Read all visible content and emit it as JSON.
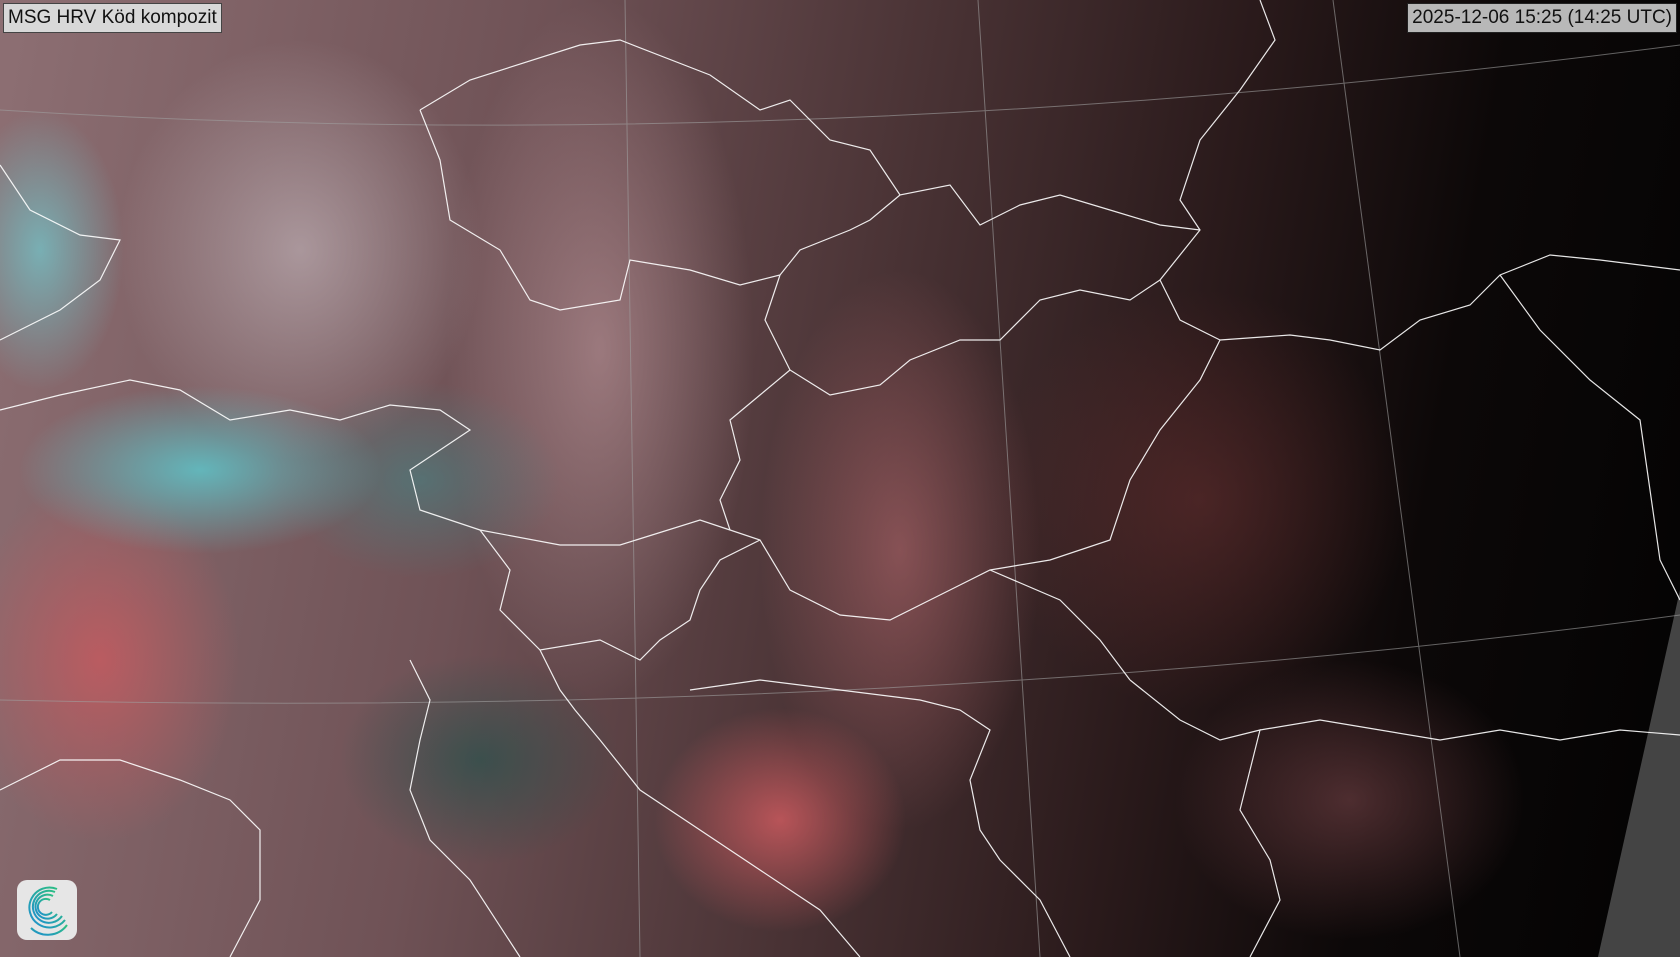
{
  "header": {
    "title": "MSG HRV Köd kompozit",
    "timestamp": "2025-12-06 15:25 (14:25 UTC)"
  },
  "map": {
    "type": "satellite-composite",
    "colors": {
      "border_lines": "#ffffff",
      "graticule": "#9a9a9a",
      "no_data": "#444444",
      "logo_gradient_start": "#1f8fd0",
      "logo_gradient_end": "#2ec47a"
    }
  },
  "logo": {
    "icon": "spiral-logo-icon"
  }
}
